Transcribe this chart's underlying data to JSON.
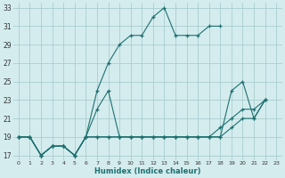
{
  "xlabel": "Humidex (Indice chaleur)",
  "bg_color": "#d4ecee",
  "grid_color": "#aacdd0",
  "line_color": "#1e7070",
  "xlim": [
    -0.5,
    23.5
  ],
  "ylim": [
    16.5,
    33.5
  ],
  "xticks": [
    0,
    1,
    2,
    3,
    4,
    5,
    6,
    7,
    8,
    9,
    10,
    11,
    12,
    13,
    14,
    15,
    16,
    17,
    18,
    19,
    20,
    21,
    22,
    23
  ],
  "yticks": [
    17,
    19,
    21,
    23,
    25,
    27,
    29,
    31,
    33
  ],
  "series": [
    {
      "x": [
        0,
        1,
        2,
        3,
        4,
        5,
        6,
        7,
        8,
        9,
        10,
        11,
        12,
        13,
        14,
        15,
        16,
        17,
        18
      ],
      "y": [
        19,
        19,
        17,
        18,
        18,
        17,
        19,
        24,
        27,
        29,
        30,
        30,
        32,
        33,
        30,
        30,
        30,
        31,
        31
      ]
    },
    {
      "x": [
        0,
        1,
        2,
        3,
        4,
        5,
        6,
        7,
        8,
        9,
        10,
        11,
        12,
        13,
        14,
        15,
        16,
        17,
        18,
        19,
        20,
        21,
        22
      ],
      "y": [
        19,
        19,
        17,
        18,
        18,
        17,
        19,
        22,
        24,
        19,
        19,
        19,
        19,
        19,
        19,
        19,
        19,
        19,
        19,
        24,
        25,
        21,
        23
      ]
    },
    {
      "x": [
        0,
        1,
        2,
        3,
        4,
        5,
        6,
        7,
        8,
        9,
        10,
        11,
        12,
        13,
        14,
        15,
        16,
        17,
        18,
        19,
        20,
        21,
        22
      ],
      "y": [
        19,
        19,
        17,
        18,
        18,
        17,
        19,
        19,
        19,
        19,
        19,
        19,
        19,
        19,
        19,
        19,
        19,
        19,
        20,
        21,
        22,
        22,
        23
      ]
    },
    {
      "x": [
        0,
        1,
        2,
        3,
        4,
        5,
        6,
        7,
        8,
        9,
        10,
        11,
        12,
        13,
        14,
        15,
        16,
        17,
        18,
        19,
        20,
        21,
        22
      ],
      "y": [
        19,
        19,
        17,
        18,
        18,
        17,
        19,
        19,
        19,
        19,
        19,
        19,
        19,
        19,
        19,
        19,
        19,
        19,
        19,
        20,
        21,
        21,
        23
      ]
    }
  ]
}
